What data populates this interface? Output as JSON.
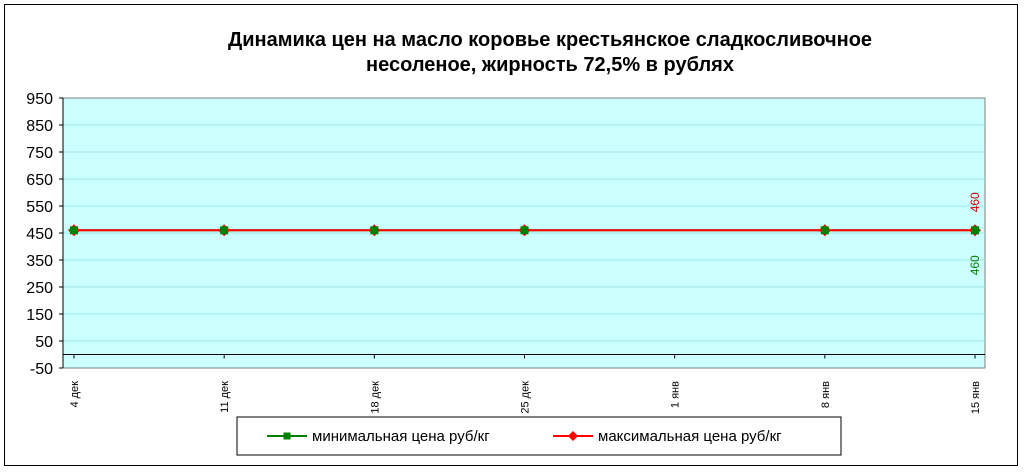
{
  "chart_data": {
    "type": "line",
    "title_lines": [
      "Динамика цен на масло коровье крестьянское  сладкосливочное",
      "несоленое, жирность 72,5%  в рублях"
    ],
    "xlabel": "",
    "ylabel": "",
    "categories": [
      "4 дек",
      "11 дек",
      "18 дек",
      "25 дек",
      "1 янв",
      "8 янв",
      "15 янв"
    ],
    "ylim": [
      -50,
      950
    ],
    "yticks": [
      950,
      850,
      750,
      650,
      550,
      450,
      350,
      250,
      150,
      50,
      -50
    ],
    "grid": true,
    "legend_position": "bottom",
    "series": [
      {
        "name": "минимальная цена руб/кг",
        "values": [
          460,
          460,
          460,
          460,
          null,
          460,
          460
        ],
        "color": "#008000",
        "marker": "square",
        "last_label": "460"
      },
      {
        "name": "максимальная цена руб/кг",
        "values": [
          460,
          460,
          460,
          460,
          null,
          460,
          460
        ],
        "color": "#ff0000",
        "marker": "diamond",
        "last_label": "460"
      }
    ],
    "plot_background": "#ccffff",
    "zero_line_color": "#000000"
  }
}
